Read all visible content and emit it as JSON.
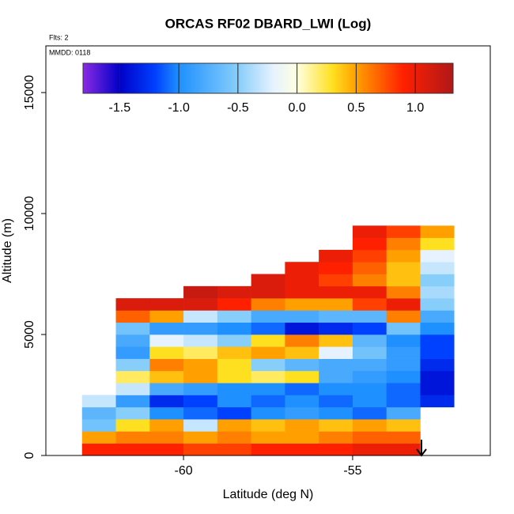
{
  "chart_data": {
    "type": "heatmap",
    "title": "ORCAS RF02 DBARD_LWI (Log)",
    "annotations": [
      "Flts: 2",
      "MMDD: 0118"
    ],
    "x_label": "Latitude (deg N)",
    "y_label": "Altitude (m)",
    "xlim": [
      -64.07,
      -50.93
    ],
    "xticks": [
      -60,
      -55
    ],
    "ylim": [
      0,
      16930
    ],
    "yticks": [
      0,
      5000,
      10000,
      15000
    ],
    "x_edges": [
      -63,
      -62,
      -61,
      -60,
      -59,
      -58,
      -57,
      -56,
      -55,
      -54,
      -53,
      -52
    ],
    "y_edges": [
      0,
      500,
      1000,
      1500,
      2000,
      2500,
      3000,
      3500,
      4000,
      4500,
      5000,
      5500,
      6000,
      6500,
      7000,
      7500,
      8000,
      8500,
      9000,
      9500
    ],
    "z": [
      [
        0.9,
        0.9,
        0.9,
        0.8,
        0.8,
        0.9,
        0.9,
        0.9,
        1.0,
        1.0,
        null
      ],
      [
        0.5,
        0.6,
        0.6,
        0.5,
        0.6,
        0.5,
        0.5,
        0.6,
        0.7,
        0.7,
        null
      ],
      [
        -0.6,
        0.3,
        0.5,
        -0.3,
        0.5,
        0.4,
        0.5,
        0.4,
        0.5,
        0.4,
        null
      ],
      [
        -0.7,
        -0.5,
        -1.0,
        -1.1,
        -1.2,
        -1.0,
        -0.9,
        -1.0,
        -1.1,
        -0.8,
        null
      ],
      [
        -0.3,
        -0.9,
        -1.3,
        -1.2,
        -1.0,
        -1.1,
        -1.0,
        -1.1,
        -1.0,
        -1.1,
        -1.3
      ],
      [
        null,
        -0.3,
        -0.8,
        -0.9,
        -1.0,
        -1.0,
        -1.1,
        -1.0,
        -1.0,
        -1.1,
        -1.4
      ],
      [
        null,
        0.2,
        0.4,
        0.5,
        0.3,
        0.2,
        0.3,
        -0.8,
        -0.9,
        -1.0,
        -1.4
      ],
      [
        null,
        -0.5,
        0.6,
        0.5,
        0.3,
        -0.5,
        -0.7,
        -0.8,
        -0.8,
        -0.9,
        -1.3
      ],
      [
        null,
        -0.9,
        0.3,
        0.2,
        0.4,
        0.5,
        0.4,
        -0.2,
        -0.6,
        -0.9,
        -1.2
      ],
      [
        null,
        -0.8,
        -0.2,
        -0.3,
        -0.5,
        0.3,
        0.6,
        0.4,
        -0.7,
        -1.0,
        -1.2
      ],
      [
        null,
        -0.6,
        -0.9,
        -0.9,
        -1.0,
        -1.1,
        -1.4,
        -1.3,
        -1.2,
        -0.6,
        -1.0
      ],
      [
        null,
        0.7,
        0.5,
        -0.3,
        -0.5,
        -0.8,
        -0.8,
        -0.7,
        -0.7,
        0.6,
        -0.8
      ],
      [
        null,
        1.1,
        1.1,
        1.1,
        0.9,
        0.6,
        0.5,
        0.5,
        0.8,
        1.0,
        -0.5
      ],
      [
        null,
        null,
        null,
        1.2,
        1.1,
        1.1,
        1.0,
        1.0,
        1.0,
        0.6,
        -0.4
      ],
      [
        null,
        null,
        null,
        null,
        null,
        1.1,
        1.0,
        0.8,
        0.6,
        0.4,
        -0.5
      ],
      [
        null,
        null,
        null,
        null,
        null,
        null,
        1.0,
        0.9,
        0.7,
        0.4,
        -0.3
      ],
      [
        null,
        null,
        null,
        null,
        null,
        null,
        null,
        1.0,
        0.8,
        0.5,
        -0.2
      ],
      [
        null,
        null,
        null,
        null,
        null,
        null,
        null,
        null,
        0.9,
        0.6,
        0.3
      ],
      [
        null,
        null,
        null,
        null,
        null,
        null,
        null,
        null,
        1.0,
        0.8,
        0.5
      ]
    ],
    "colorbar_lim": [
      -1.81,
      1.32
    ],
    "colorbar_ticks": [
      -1.5,
      {
        "value": -1.0,
        "label": "-1.0"
      },
      -0.5,
      {
        "value": 0.0,
        "label": "0.0"
      },
      0.5,
      {
        "value": 1.0,
        "label": "1.0"
      }
    ],
    "colorscale": [
      [
        -1.81,
        "#8a2be2"
      ],
      [
        -1.5,
        "#0000c8"
      ],
      [
        -1.2,
        "#0040ff"
      ],
      [
        -1.0,
        "#1e90ff"
      ],
      [
        -0.5,
        "#87cefa"
      ],
      [
        -0.2,
        "#e6f2ff"
      ],
      [
        0.0,
        "#ffffe0"
      ],
      [
        0.3,
        "#ffe020"
      ],
      [
        0.5,
        "#ffa000"
      ],
      [
        0.9,
        "#ff2000"
      ],
      [
        1.32,
        "#b01818"
      ]
    ]
  }
}
